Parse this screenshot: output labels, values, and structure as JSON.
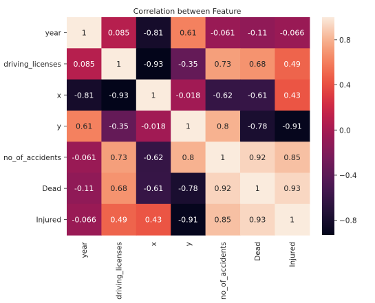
{
  "chart_data": {
    "type": "heatmap",
    "title": "Correlation between Feature",
    "xlabel": "",
    "ylabel": "",
    "rows": [
      "year",
      "driving_licenses",
      "x",
      "y",
      "no_of_accidents",
      "Dead",
      "Injured"
    ],
    "columns": [
      "year",
      "driving_licenses",
      "x",
      "y",
      "no_of_accidents",
      "Dead",
      "Injured"
    ],
    "values": [
      [
        1,
        0.085,
        -0.81,
        0.61,
        -0.061,
        -0.11,
        -0.066
      ],
      [
        0.085,
        1,
        -0.93,
        -0.35,
        0.73,
        0.68,
        0.49
      ],
      [
        -0.81,
        -0.93,
        1,
        -0.018,
        -0.62,
        -0.61,
        0.43
      ],
      [
        0.61,
        -0.35,
        -0.018,
        1,
        0.8,
        -0.78,
        -0.91
      ],
      [
        -0.061,
        0.73,
        -0.62,
        0.8,
        1,
        0.92,
        0.85
      ],
      [
        -0.11,
        0.68,
        -0.61,
        -0.78,
        0.92,
        1,
        0.93
      ],
      [
        -0.066,
        0.49,
        0.43,
        -0.91,
        0.85,
        0.93,
        1
      ]
    ],
    "labels": [
      [
        "1",
        "0.085",
        "-0.81",
        "0.61",
        "-0.061",
        "-0.11",
        "-0.066"
      ],
      [
        "0.085",
        "1",
        "-0.93",
        "-0.35",
        "0.73",
        "0.68",
        "0.49"
      ],
      [
        "-0.81",
        "-0.93",
        "1",
        "-0.018",
        "-0.62",
        "-0.61",
        "0.43"
      ],
      [
        "0.61",
        "-0.35",
        "-0.018",
        "1",
        "0.8",
        "-0.78",
        "-0.91"
      ],
      [
        "-0.061",
        "0.73",
        "-0.62",
        "0.8",
        "1",
        "0.92",
        "0.85"
      ],
      [
        "-0.11",
        "0.68",
        "-0.61",
        "-0.78",
        "0.92",
        "1",
        "0.93"
      ],
      [
        "-0.066",
        "0.49",
        "0.43",
        "-0.91",
        "0.85",
        "0.93",
        "1"
      ]
    ],
    "colormap": "rocket",
    "vmin": -0.93,
    "vmax": 1,
    "colorbar": {
      "ticks": [
        0.8,
        0.4,
        0.0,
        -0.4,
        -0.8
      ],
      "tick_labels": [
        "0.8",
        "0.4",
        "0.0",
        "−0.4",
        "−0.8"
      ]
    },
    "grid": false
  }
}
